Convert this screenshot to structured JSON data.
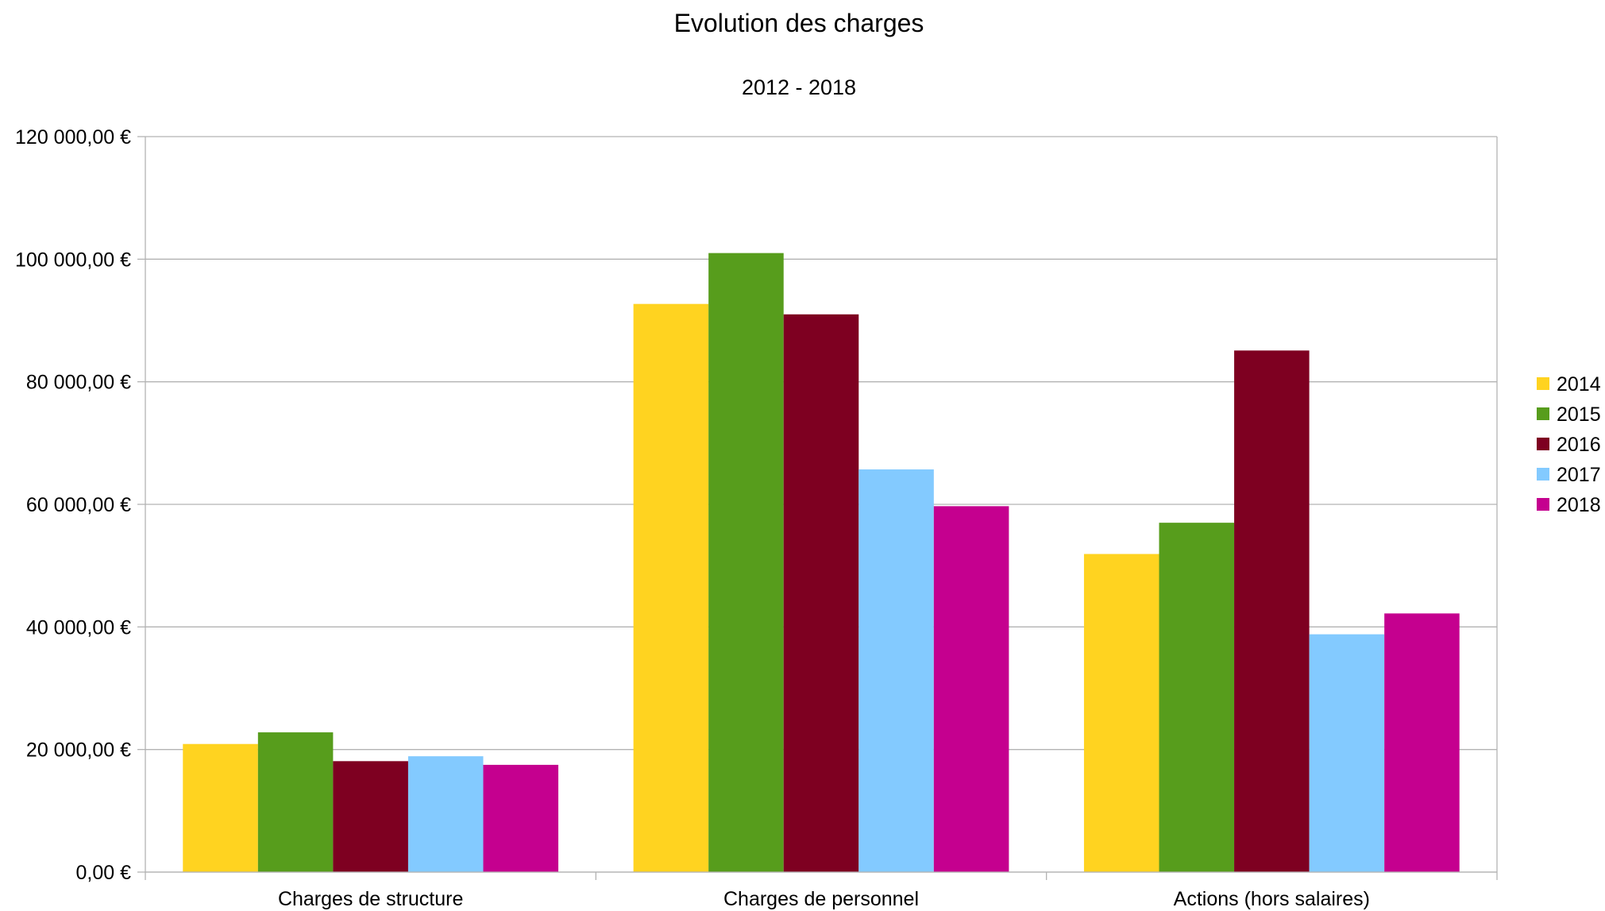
{
  "chart_data": {
    "type": "bar",
    "title": "Evolution des charges",
    "subtitle": "2012 - 2018",
    "xlabel": "",
    "ylabel": "",
    "categories": [
      "Charges de structure",
      "Charges de personnel",
      "Actions (hors salaires)"
    ],
    "series": [
      {
        "name": "2014",
        "color": "#ffd320",
        "values": [
          20900,
          92700,
          51900
        ]
      },
      {
        "name": "2015",
        "color": "#579d1c",
        "values": [
          22800,
          101000,
          57000
        ]
      },
      {
        "name": "2016",
        "color": "#7e0021",
        "values": [
          18100,
          91000,
          85100
        ]
      },
      {
        "name": "2017",
        "color": "#83caff",
        "values": [
          18900,
          65700,
          38800
        ]
      },
      {
        "name": "2018",
        "color": "#c5008f",
        "values": [
          17500,
          59700,
          42200
        ]
      }
    ],
    "ylim": [
      0,
      120000
    ],
    "yticks": [
      0,
      20000,
      40000,
      60000,
      80000,
      100000,
      120000
    ],
    "ytick_labels": [
      "0,00 €",
      "20 000,00 €",
      "40 000,00 €",
      "60 000,00 €",
      "80 000,00 €",
      "100 000,00 €",
      "120 000,00 €"
    ],
    "grid": true,
    "legend_position": "right"
  }
}
